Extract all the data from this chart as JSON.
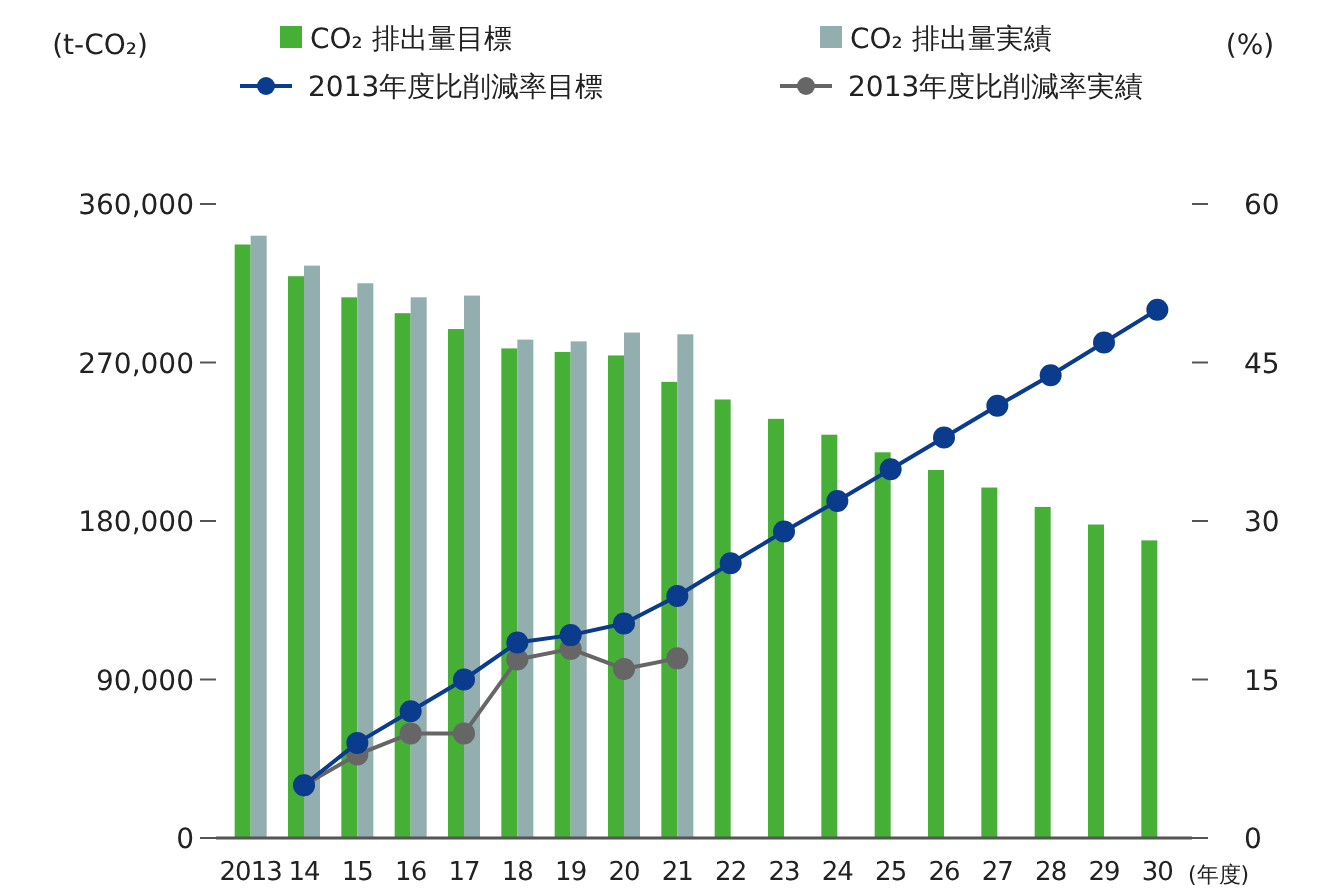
{
  "chart_data": {
    "type": "bar",
    "categories": [
      "2013",
      "14",
      "15",
      "16",
      "17",
      "18",
      "19",
      "20",
      "21",
      "22",
      "23",
      "24",
      "25",
      "26",
      "27",
      "28",
      "29",
      "30"
    ],
    "xlabel": "(年度)",
    "ylabel": "(t-CO₂)",
    "y2label": "(%)",
    "series": [
      {
        "name": "CO₂ 排出量目標",
        "color": "#45b035",
        "values": [
          337000,
          319000,
          307000,
          298000,
          289000,
          278000,
          276000,
          274000,
          259000,
          249000,
          238000,
          229000,
          219000,
          209000,
          199000,
          188000,
          178000,
          169000
        ]
      },
      {
        "name": "CO₂ 排出量実績",
        "color": "#93aeae",
        "values": [
          342000,
          325000,
          315000,
          307000,
          308000,
          283000,
          282000,
          287000,
          286000,
          null,
          null,
          null,
          null,
          null,
          null,
          null,
          null,
          null
        ]
      },
      {
        "name": "2013年度比削減率目標",
        "type": "line",
        "axis": "y2",
        "color": "#0a3b8c",
        "values": [
          null,
          5.0,
          9.0,
          12.0,
          15.0,
          18.5,
          19.2,
          20.3,
          22.9,
          26.0,
          29.0,
          31.9,
          34.9,
          37.9,
          40.9,
          43.8,
          46.9,
          50.0
        ]
      },
      {
        "name": "2013年度比削減率実績",
        "type": "line",
        "axis": "y2",
        "color": "#666666",
        "values": [
          null,
          5.0,
          7.9,
          9.9,
          9.9,
          16.9,
          17.9,
          16.0,
          17.0,
          null,
          null,
          null,
          null,
          null,
          null,
          null,
          null,
          null
        ]
      }
    ],
    "ylim": [
      0,
      360000
    ],
    "yticks": [
      0,
      {
        "value": 90000,
        "label": "90,000"
      },
      {
        "value": 180000,
        "label": "180,000"
      },
      {
        "value": 270000,
        "label": "270,000"
      },
      {
        "value": 360000,
        "label": "360,000"
      }
    ],
    "y2lim": [
      0,
      60
    ],
    "y2ticks": [
      0,
      15,
      30,
      45,
      60
    ],
    "marker": "circle",
    "legend": "top",
    "grid": false
  }
}
